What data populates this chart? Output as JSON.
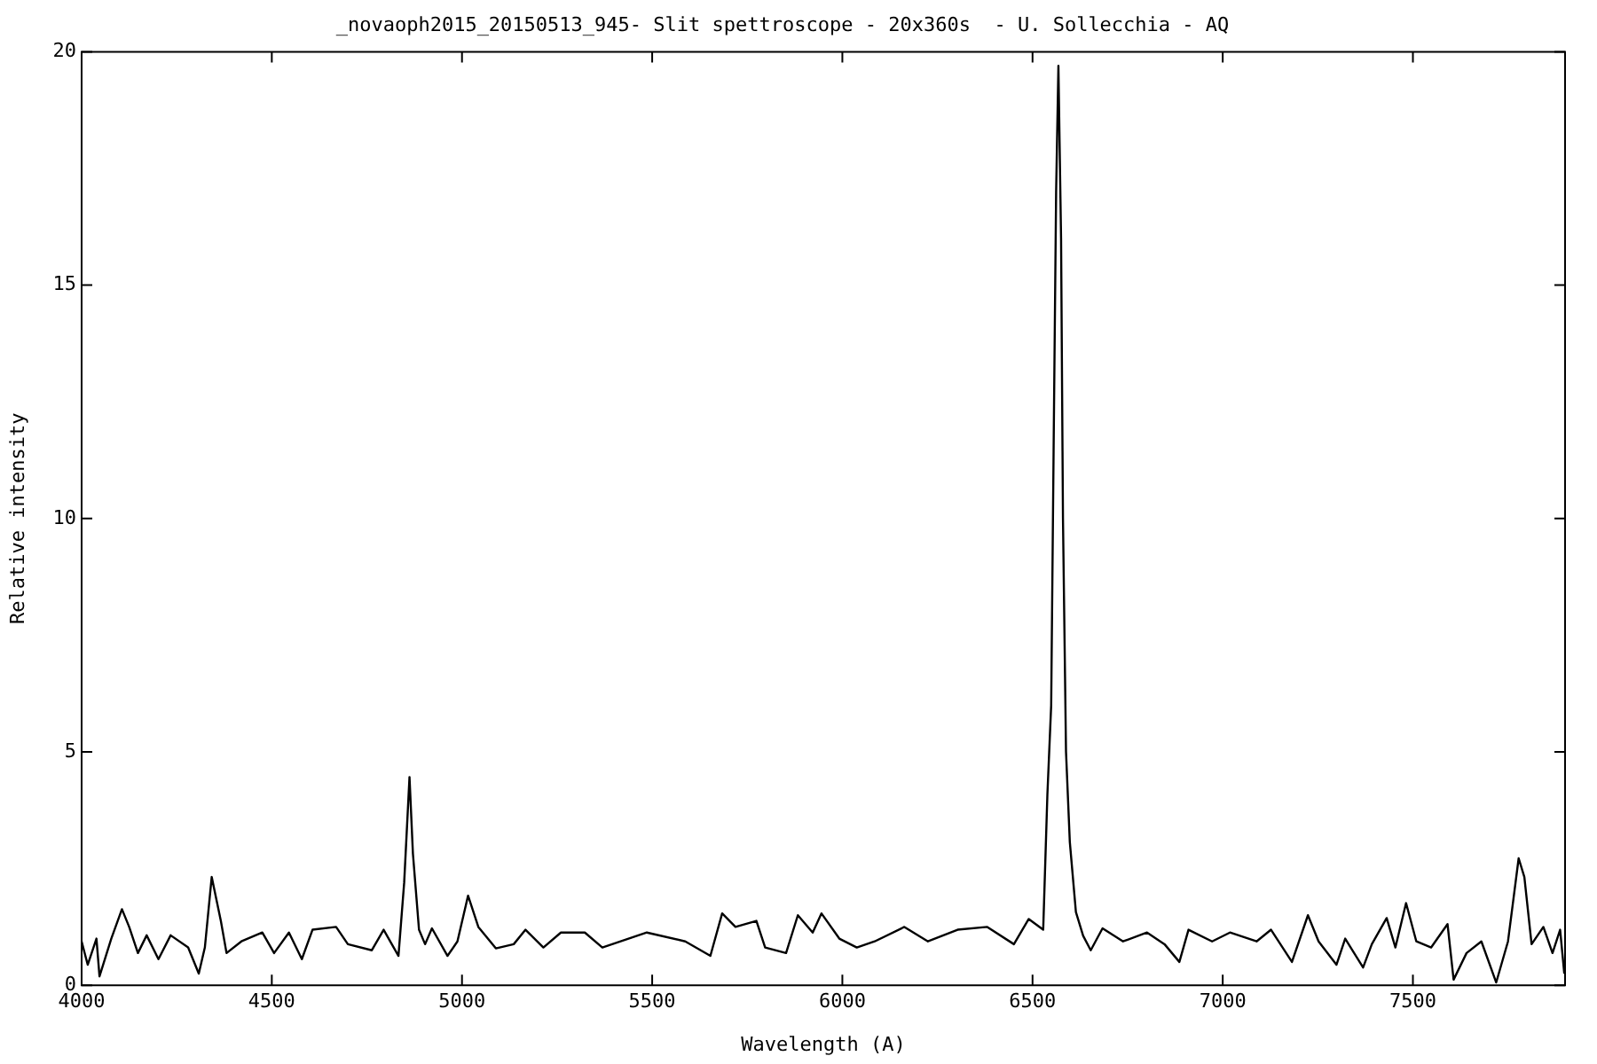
{
  "chart_data": {
    "type": "line",
    "title": "_novaoph2015_20150513_945- Slit spettroscope - 20x360s  - U. Sollecchia - AQ",
    "xlabel": "Wavelength (A)",
    "ylabel": "Relative intensity",
    "xlim": [
      4000,
      7900
    ],
    "xticks": [
      4000,
      4500,
      5000,
      5500,
      6000,
      6500,
      7000,
      7500
    ],
    "ylim": [
      0,
      20
    ],
    "yticks": [
      0,
      5,
      10,
      15,
      20
    ],
    "grid": false,
    "legend": false,
    "marker": "none",
    "line_style": "solid",
    "series": [
      {
        "color": "#000000",
        "x": [
          4000,
          4016,
          4039,
          4047,
          4078,
          4106,
          4125,
          4148,
          4171,
          4202,
          4234,
          4280,
          4308,
          4324,
          4342,
          4366,
          4381,
          4420,
          4475,
          4506,
          4545,
          4579,
          4607,
          4669,
          4700,
          4763,
          4794,
          4833,
          4848,
          4862,
          4871,
          4887,
          4903,
          4921,
          4962,
          4988,
          5016,
          5043,
          5089,
          5136,
          5167,
          5214,
          5260,
          5323,
          5369,
          5486,
          5587,
          5653,
          5684,
          5719,
          5774,
          5797,
          5852,
          5883,
          5922,
          5945,
          5992,
          6038,
          6085,
          6163,
          6225,
          6303,
          6381,
          6451,
          6490,
          6528,
          6539,
          6549,
          6556,
          6562,
          6568,
          6575,
          6580,
          6588,
          6598,
          6614,
          6633,
          6653,
          6684,
          6738,
          6801,
          6847,
          6886,
          6910,
          6972,
          7019,
          7089,
          7127,
          7182,
          7224,
          7252,
          7299,
          7322,
          7369,
          7392,
          7431,
          7454,
          7482,
          7509,
          7548,
          7591,
          7607,
          7641,
          7680,
          7719,
          7750,
          7778,
          7793,
          7812,
          7843,
          7867,
          7887,
          7898
        ],
        "values": [
          0.94,
          0.44,
          1.0,
          0.19,
          1.0,
          1.63,
          1.25,
          0.69,
          1.07,
          0.56,
          1.07,
          0.81,
          0.25,
          0.81,
          2.32,
          1.38,
          0.69,
          0.94,
          1.13,
          0.69,
          1.13,
          0.56,
          1.19,
          1.25,
          0.88,
          0.75,
          1.19,
          0.63,
          2.2,
          4.46,
          2.82,
          1.19,
          0.88,
          1.22,
          0.63,
          0.94,
          1.92,
          1.25,
          0.79,
          0.88,
          1.19,
          0.81,
          1.13,
          1.13,
          0.81,
          1.13,
          0.94,
          0.63,
          1.54,
          1.25,
          1.38,
          0.81,
          0.69,
          1.5,
          1.13,
          1.54,
          1.0,
          0.81,
          0.94,
          1.25,
          0.94,
          1.19,
          1.25,
          0.88,
          1.42,
          1.19,
          4.08,
          6.0,
          12.0,
          17.0,
          19.7,
          16.0,
          10.0,
          5.0,
          3.07,
          1.57,
          1.06,
          0.75,
          1.22,
          0.94,
          1.13,
          0.88,
          0.5,
          1.19,
          0.94,
          1.13,
          0.94,
          1.19,
          0.5,
          1.5,
          0.94,
          0.44,
          1.0,
          0.38,
          0.88,
          1.44,
          0.81,
          1.76,
          0.94,
          0.81,
          1.31,
          0.12,
          0.69,
          0.94,
          0.06,
          0.94,
          2.72,
          2.32,
          0.88,
          1.25,
          0.69,
          1.19,
          0.25
        ]
      }
    ]
  }
}
